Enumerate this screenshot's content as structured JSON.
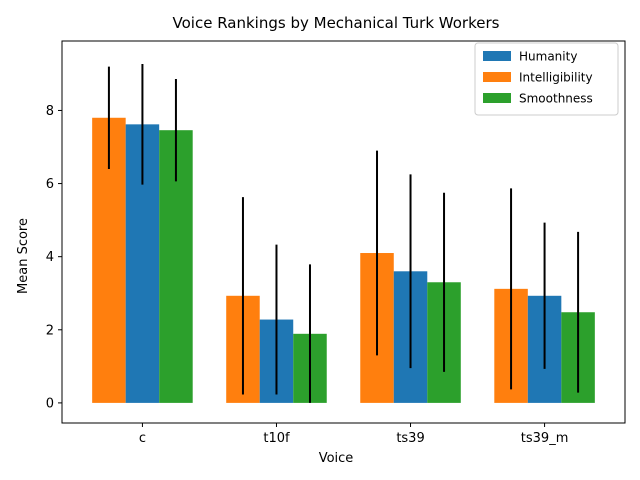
{
  "chart_data": {
    "type": "bar",
    "title": "Voice Rankings by Mechanical Turk Workers",
    "xlabel": "Voice",
    "ylabel": "Mean Score",
    "categories": [
      "c",
      "t10f",
      "ts39",
      "ts39_m"
    ],
    "ylim": [
      -0.55,
      9.9
    ],
    "yticks": [
      0,
      2,
      4,
      6,
      8
    ],
    "grid": false,
    "legend_position": "upper right",
    "series": [
      {
        "name": "Intelligibility",
        "color": "#ff7f0e",
        "values": [
          7.8,
          2.93,
          4.1,
          3.12
        ],
        "errors": [
          1.4,
          2.7,
          2.8,
          2.75
        ]
      },
      {
        "name": "Humanity",
        "color": "#1f77b4",
        "values": [
          7.62,
          2.28,
          3.6,
          2.93
        ],
        "errors": [
          1.65,
          2.05,
          2.65,
          2.0
        ]
      },
      {
        "name": "Smoothness",
        "color": "#2ca02c",
        "values": [
          7.46,
          1.89,
          3.3,
          2.48
        ],
        "errors": [
          1.4,
          1.9,
          2.45,
          2.2
        ]
      }
    ],
    "legend_order": [
      "Humanity",
      "Intelligibility",
      "Smoothness"
    ]
  }
}
